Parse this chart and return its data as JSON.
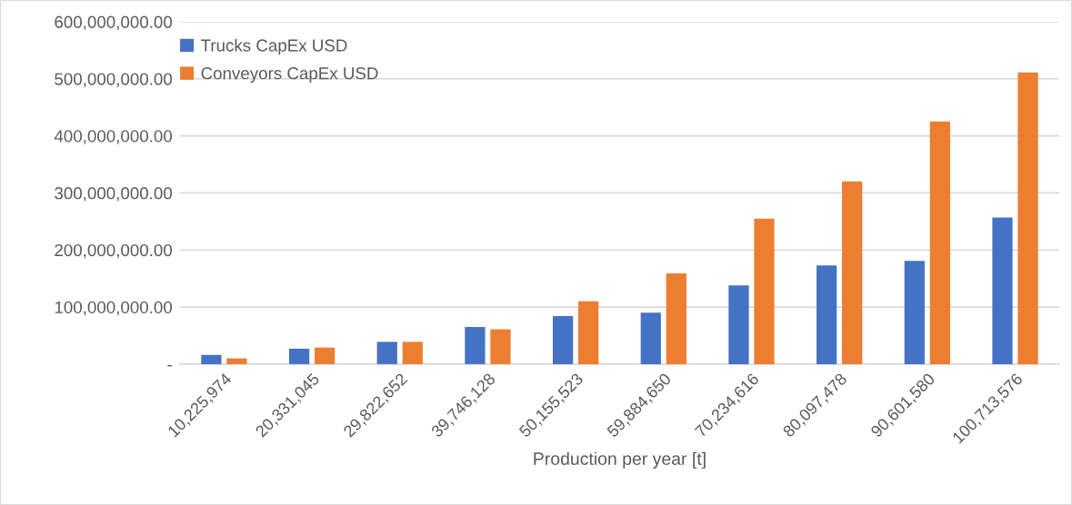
{
  "chart_data": {
    "type": "bar",
    "xlabel": "Production per year [t]",
    "categories": [
      "10,225,974",
      "20,331,045",
      "29,822,652",
      "39,746,128",
      "50,155,523",
      "59,884,650",
      "70,234,616",
      "80,097,478",
      "90,601,580",
      "100,713,576"
    ],
    "series": [
      {
        "name": "Trucks CapEx USD",
        "color": "#4472c4",
        "values": [
          16000000,
          27000000,
          39000000,
          65000000,
          84000000,
          90000000,
          138000000,
          173000000,
          181000000,
          257000000
        ]
      },
      {
        "name": "Conveyors CapEx USD",
        "color": "#ed7d31",
        "values": [
          10000000,
          29000000,
          39000000,
          61000000,
          110000000,
          159000000,
          255000000,
          320000000,
          425000000,
          511000000
        ]
      }
    ],
    "ylim": [
      0,
      600000000
    ],
    "yticks": [
      {
        "value": 0,
        "label": "-"
      },
      {
        "value": 100000000,
        "label": "100,000,000.00"
      },
      {
        "value": 200000000,
        "label": "200,000,000.00"
      },
      {
        "value": 300000000,
        "label": "300,000,000.00"
      },
      {
        "value": 400000000,
        "label": "400,000,000.00"
      },
      {
        "value": 500000000,
        "label": "500,000,000.00"
      },
      {
        "value": 600000000,
        "label": "600,000,000.00"
      }
    ],
    "grid": "y",
    "legend": "top left"
  }
}
